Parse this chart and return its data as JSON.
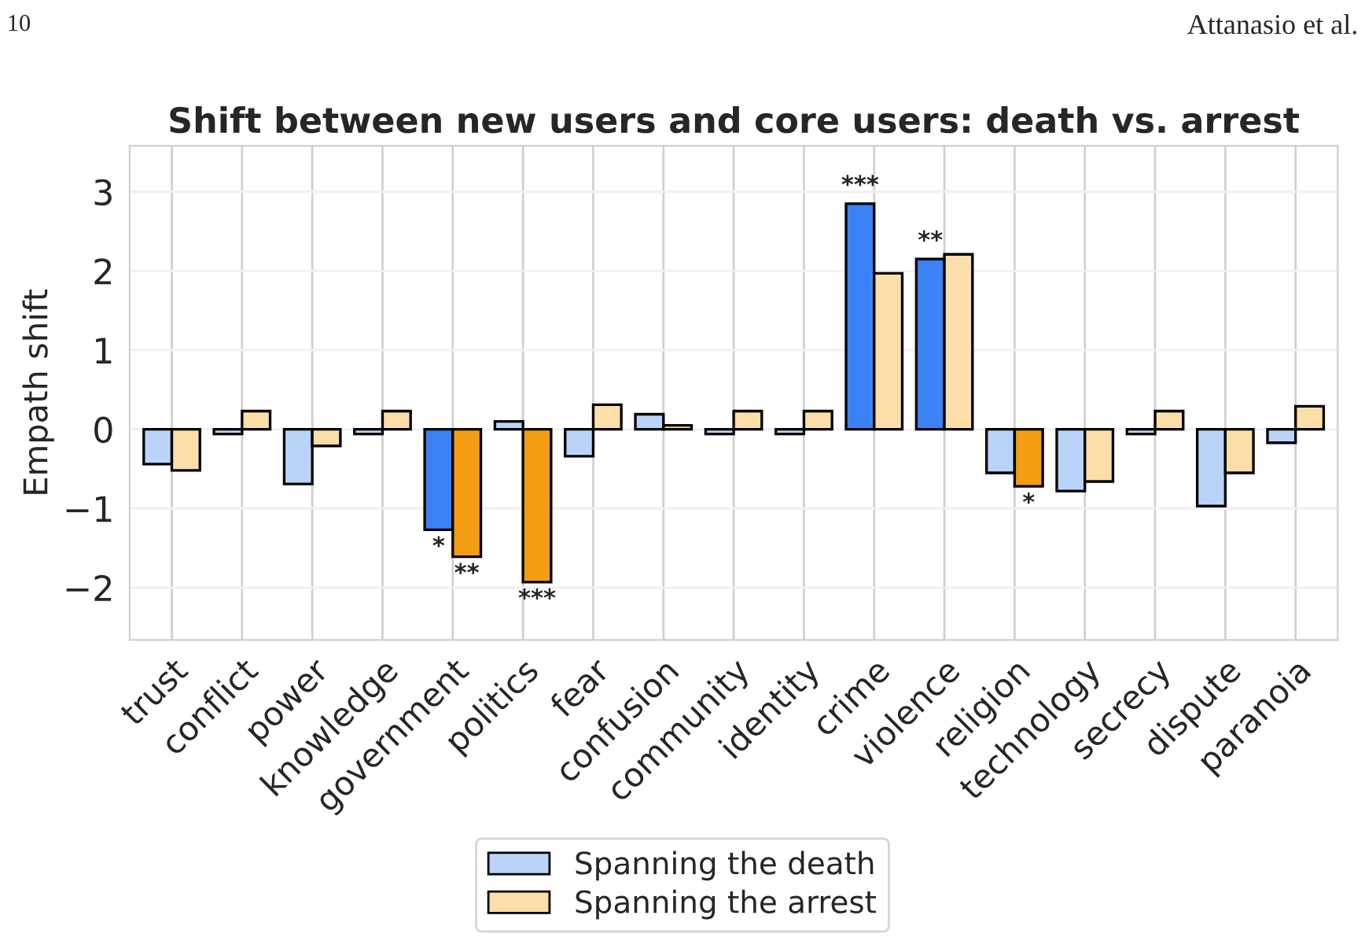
{
  "chart_data": {
    "type": "bar",
    "title": "Shift between new users and core users: death vs. arrest",
    "ylabel": "Empath shift",
    "categories": [
      "trust",
      "conflict",
      "power",
      "knowledge",
      "government",
      "politics",
      "fear",
      "confusion",
      "community",
      "identity",
      "crime",
      "violence",
      "religion",
      "technology",
      "secrecy",
      "dispute",
      "paranoia"
    ],
    "series": [
      {
        "name": "Spanning the death",
        "color": "#bad3f8",
        "colors": [
          "#bad3f8",
          "#bad3f8",
          "#bad3f8",
          "#bad3f8",
          "#3b82f6",
          "#bad3f8",
          "#bad3f8",
          "#bad3f8",
          "#bad3f8",
          "#bad3f8",
          "#3b82f6",
          "#3b82f6",
          "#bad3f8",
          "#bad3f8",
          "#bad3f8",
          "#bad3f8",
          "#bad3f8"
        ],
        "values": [
          -0.44,
          -0.06,
          -0.69,
          -0.06,
          -1.27,
          0.1,
          -0.34,
          0.19,
          -0.06,
          -0.06,
          2.85,
          2.15,
          -0.55,
          -0.78,
          -0.06,
          -0.97,
          -0.17
        ]
      },
      {
        "name": "Spanning the arrest",
        "color": "#fbdea8",
        "colors": [
          "#fbdea8",
          "#fbdea8",
          "#fbdea8",
          "#fbdea8",
          "#f39c12",
          "#f39c12",
          "#fbdea8",
          "#fbdea8",
          "#fbdea8",
          "#fbdea8",
          "#fbdea8",
          "#fbdea8",
          "#f39c12",
          "#fbdea8",
          "#fbdea8",
          "#fbdea8",
          "#fbdea8"
        ],
        "values": [
          -0.52,
          0.23,
          -0.21,
          0.23,
          -1.61,
          -1.93,
          0.31,
          0.05,
          0.23,
          0.23,
          1.97,
          2.21,
          -0.72,
          -0.66,
          0.23,
          -0.55,
          0.29
        ]
      }
    ],
    "ylim": [
      -2.66,
      3.58
    ],
    "yticks": [
      {
        "value": -2,
        "label": "−2"
      },
      {
        "value": -1,
        "label": "−1"
      },
      0,
      1,
      2,
      3
    ],
    "grid": true,
    "legend": "bottom",
    "annotations": [
      {
        "text": "***",
        "x": "crime",
        "y": 2.85
      },
      {
        "text": "**",
        "x": "violence",
        "y": 2.15
      },
      {
        "text": "*",
        "x": "government",
        "y": -1.27
      },
      {
        "text": "**",
        "x": "government",
        "y": -1.61
      },
      {
        "text": "***",
        "x": "politics",
        "y": -1.93
      },
      {
        "text": "*",
        "x": "religion",
        "y": -0.72
      },
      "10",
      "Attanasio et al."
    ]
  }
}
